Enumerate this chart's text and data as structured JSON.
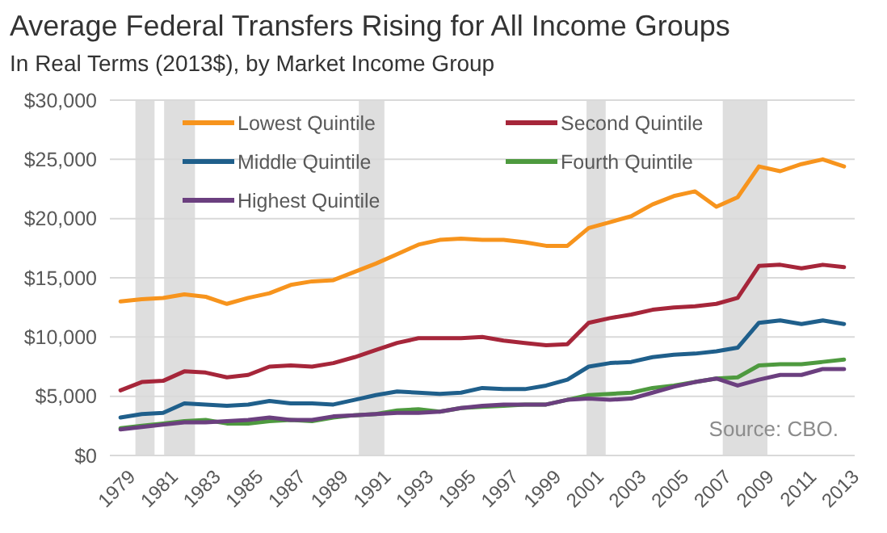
{
  "chart_data": {
    "type": "line",
    "title": "Average Federal Transfers Rising for All Income Groups",
    "subtitle": "In Real Terms (2013$), by Market Income Group",
    "x": [
      1979,
      1980,
      1981,
      1982,
      1983,
      1984,
      1985,
      1986,
      1987,
      1988,
      1989,
      1990,
      1991,
      1992,
      1993,
      1994,
      1995,
      1996,
      1997,
      1998,
      1999,
      2000,
      2001,
      2002,
      2003,
      2004,
      2005,
      2006,
      2007,
      2008,
      2009,
      2010,
      2011,
      2012,
      2013
    ],
    "xlim": [
      1978.5,
      2013.5
    ],
    "xticks": [
      {
        "value": 1979,
        "label": "1979"
      },
      {
        "value": 1981,
        "label": "1981"
      },
      {
        "value": 1983,
        "label": "1983"
      },
      {
        "value": 1985,
        "label": "1985"
      },
      {
        "value": 1987,
        "label": "1987"
      },
      {
        "value": 1989,
        "label": "1989"
      },
      {
        "value": 1991,
        "label": "1991"
      },
      {
        "value": 1993,
        "label": "1993"
      },
      {
        "value": 1995,
        "label": "1995"
      },
      {
        "value": 1997,
        "label": "1997"
      },
      {
        "value": 1999,
        "label": "1999"
      },
      {
        "value": 2001,
        "label": "2001"
      },
      {
        "value": 2003,
        "label": "2003"
      },
      {
        "value": 2005,
        "label": "2005"
      },
      {
        "value": 2007,
        "label": "2007"
      },
      {
        "value": 2009,
        "label": "2009"
      },
      {
        "value": 2011,
        "label": "2011"
      },
      {
        "value": 2013,
        "label": "2013"
      }
    ],
    "ylim": [
      0,
      30000
    ],
    "yticks": [
      {
        "value": 0,
        "label": "$0"
      },
      {
        "value": 5000,
        "label": "$5,000"
      },
      {
        "value": 10000,
        "label": "$10,000"
      },
      {
        "value": 15000,
        "label": "$15,000"
      },
      {
        "value": 20000,
        "label": "$20,000"
      },
      {
        "value": 25000,
        "label": "$25,000"
      },
      {
        "value": 30000,
        "label": "$30,000"
      }
    ],
    "grid": "y",
    "legend": "top",
    "line_style": "solid",
    "series": [
      {
        "name": "Lowest Quintile",
        "color": "#f7941d",
        "values": [
          13000,
          13200,
          13300,
          13600,
          13400,
          12800,
          13300,
          13700,
          14400,
          14700,
          14800,
          15500,
          16200,
          17000,
          17800,
          18200,
          18300,
          18200,
          18200,
          18000,
          17700,
          17700,
          19200,
          19700,
          20200,
          21200,
          21900,
          22300,
          21000,
          21800,
          24400,
          24000,
          24600,
          25000,
          24400
        ]
      },
      {
        "name": "Second Quintile",
        "color": "#a6263a",
        "values": [
          5500,
          6200,
          6300,
          7100,
          7000,
          6600,
          6800,
          7500,
          7600,
          7500,
          7800,
          8300,
          8900,
          9500,
          9900,
          9900,
          9900,
          10000,
          9700,
          9500,
          9300,
          9400,
          11200,
          11600,
          11900,
          12300,
          12500,
          12600,
          12800,
          13300,
          16000,
          16100,
          15800,
          16100,
          15900
        ]
      },
      {
        "name": "Middle Quintile",
        "color": "#1f5f8b",
        "values": [
          3200,
          3500,
          3600,
          4400,
          4300,
          4200,
          4300,
          4600,
          4400,
          4400,
          4300,
          4700,
          5100,
          5400,
          5300,
          5200,
          5300,
          5700,
          5600,
          5600,
          5900,
          6400,
          7500,
          7800,
          7900,
          8300,
          8500,
          8600,
          8800,
          9100,
          11200,
          11400,
          11100,
          11400,
          11100
        ]
      },
      {
        "name": "Fourth Quintile",
        "color": "#4e9a3f",
        "values": [
          2300,
          2500,
          2700,
          2900,
          3000,
          2700,
          2700,
          2900,
          3000,
          2900,
          3200,
          3400,
          3500,
          3800,
          3900,
          3700,
          4000,
          4100,
          4200,
          4300,
          4300,
          4700,
          5100,
          5200,
          5300,
          5700,
          5900,
          6200,
          6500,
          6600,
          7600,
          7700,
          7700,
          7900,
          8100
        ]
      },
      {
        "name": "Highest Quintile",
        "color": "#6b3f7f",
        "values": [
          2200,
          2400,
          2600,
          2800,
          2800,
          2900,
          3000,
          3200,
          3000,
          3000,
          3300,
          3400,
          3500,
          3600,
          3600,
          3700,
          4000,
          4200,
          4300,
          4300,
          4300,
          4700,
          4800,
          4700,
          4800,
          5300,
          5800,
          6200,
          6500,
          5900,
          6400,
          6800,
          6800,
          7300,
          7300
        ]
      }
    ],
    "bands": [
      {
        "axis": "x",
        "from": 1979.7,
        "to": 1980.6,
        "color": "#dedede"
      },
      {
        "axis": "x",
        "from": 1981.05,
        "to": 1982.5,
        "color": "#dedede"
      },
      {
        "axis": "x",
        "from": 1990.2,
        "to": 1991.4,
        "color": "#dedede"
      },
      {
        "axis": "x",
        "from": 2000.9,
        "to": 2001.8,
        "color": "#dedede"
      },
      {
        "axis": "x",
        "from": 2007.3,
        "to": 2009.4,
        "color": "#dedede"
      }
    ],
    "annotations": [
      "Source: CBO."
    ]
  }
}
